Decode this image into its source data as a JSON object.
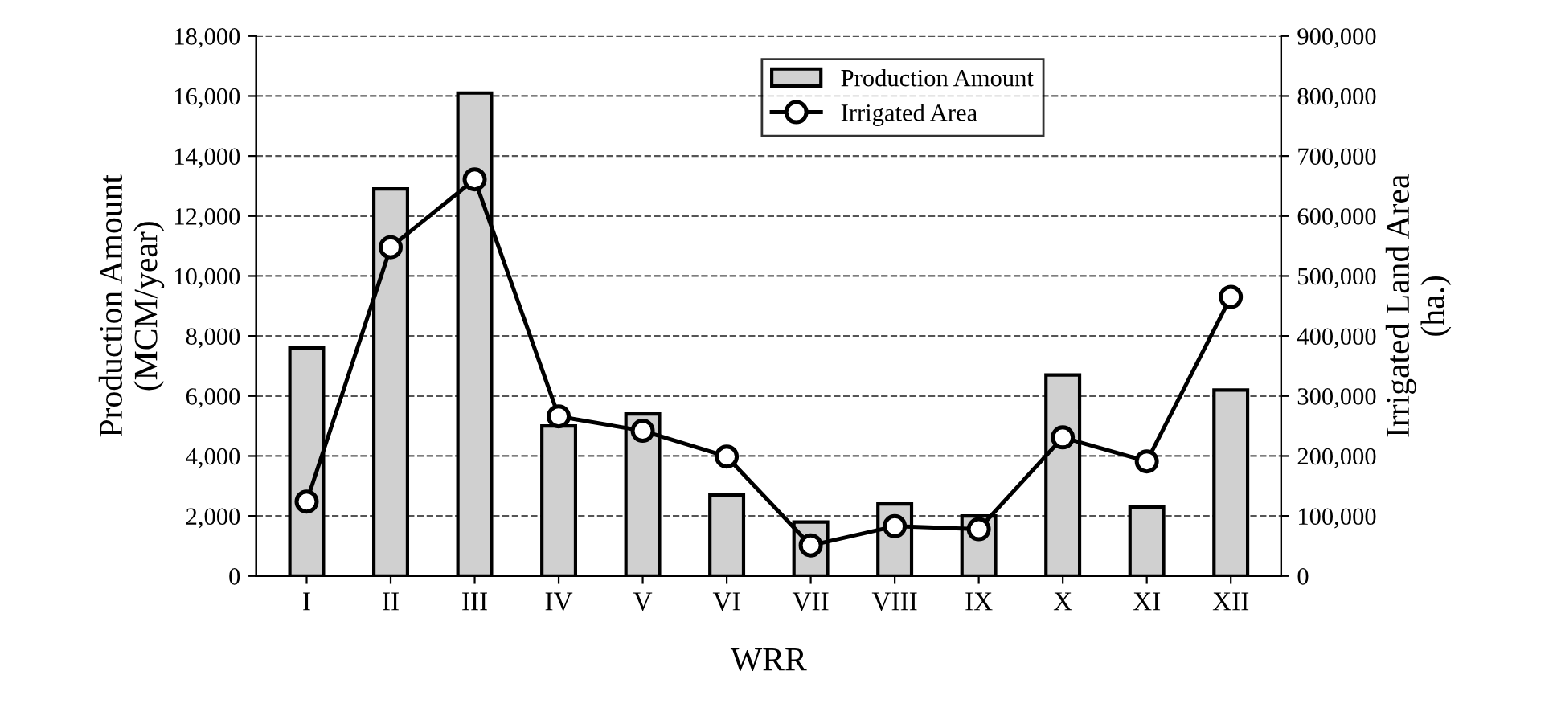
{
  "chart_data": {
    "type": "bar",
    "xlabel": "WRR",
    "ylabel": "Production Amount\n(MCM/year)",
    "y2label": "Irrigated Land Area\n(ha.)",
    "categories": [
      "I",
      "II",
      "III",
      "IV",
      "V",
      "VI",
      "VII",
      "VIII",
      "IX",
      "X",
      "XI",
      "XII"
    ],
    "series": [
      {
        "name": "Production Amount",
        "color": "#d0d0d0",
        "values": [
          7600,
          12900,
          16100,
          5000,
          5400,
          2700,
          1800,
          2400,
          2000,
          6700,
          2300,
          6200
        ]
      },
      {
        "name": "Irrigated Area",
        "type": "line",
        "axis": "y2",
        "color": "#000000",
        "marker": "circle",
        "line_style": "solid",
        "values": [
          124000,
          548000,
          661000,
          266000,
          242000,
          199000,
          51000,
          83000,
          78000,
          231000,
          191000,
          465000
        ]
      }
    ],
    "ylim": [
      0,
      18000
    ],
    "yticks": [
      {
        "value": 0,
        "label": "0"
      },
      {
        "value": 2000,
        "label": "2,000"
      },
      {
        "value": 4000,
        "label": "4,000"
      },
      {
        "value": 6000,
        "label": "6,000"
      },
      {
        "value": 8000,
        "label": "8,000"
      },
      {
        "value": 10000,
        "label": "10,000"
      },
      {
        "value": 12000,
        "label": "12,000"
      },
      {
        "value": 14000,
        "label": "14,000"
      },
      {
        "value": 16000,
        "label": "16,000"
      },
      {
        "value": 18000,
        "label": "18,000"
      }
    ],
    "y2lim": [
      0,
      900000
    ],
    "y2ticks": [
      {
        "value": 0,
        "label": "0"
      },
      {
        "value": 100000,
        "label": "100,000"
      },
      {
        "value": 200000,
        "label": "200,000"
      },
      {
        "value": 300000,
        "label": "300,000"
      },
      {
        "value": 400000,
        "label": "400,000"
      },
      {
        "value": 500000,
        "label": "500,000"
      },
      {
        "value": 600000,
        "label": "600,000"
      },
      {
        "value": 700000,
        "label": "700,000"
      },
      {
        "value": 800000,
        "label": "800,000"
      },
      {
        "value": 900000,
        "label": "900,000"
      }
    ],
    "grid": "y",
    "legend": "top right"
  }
}
